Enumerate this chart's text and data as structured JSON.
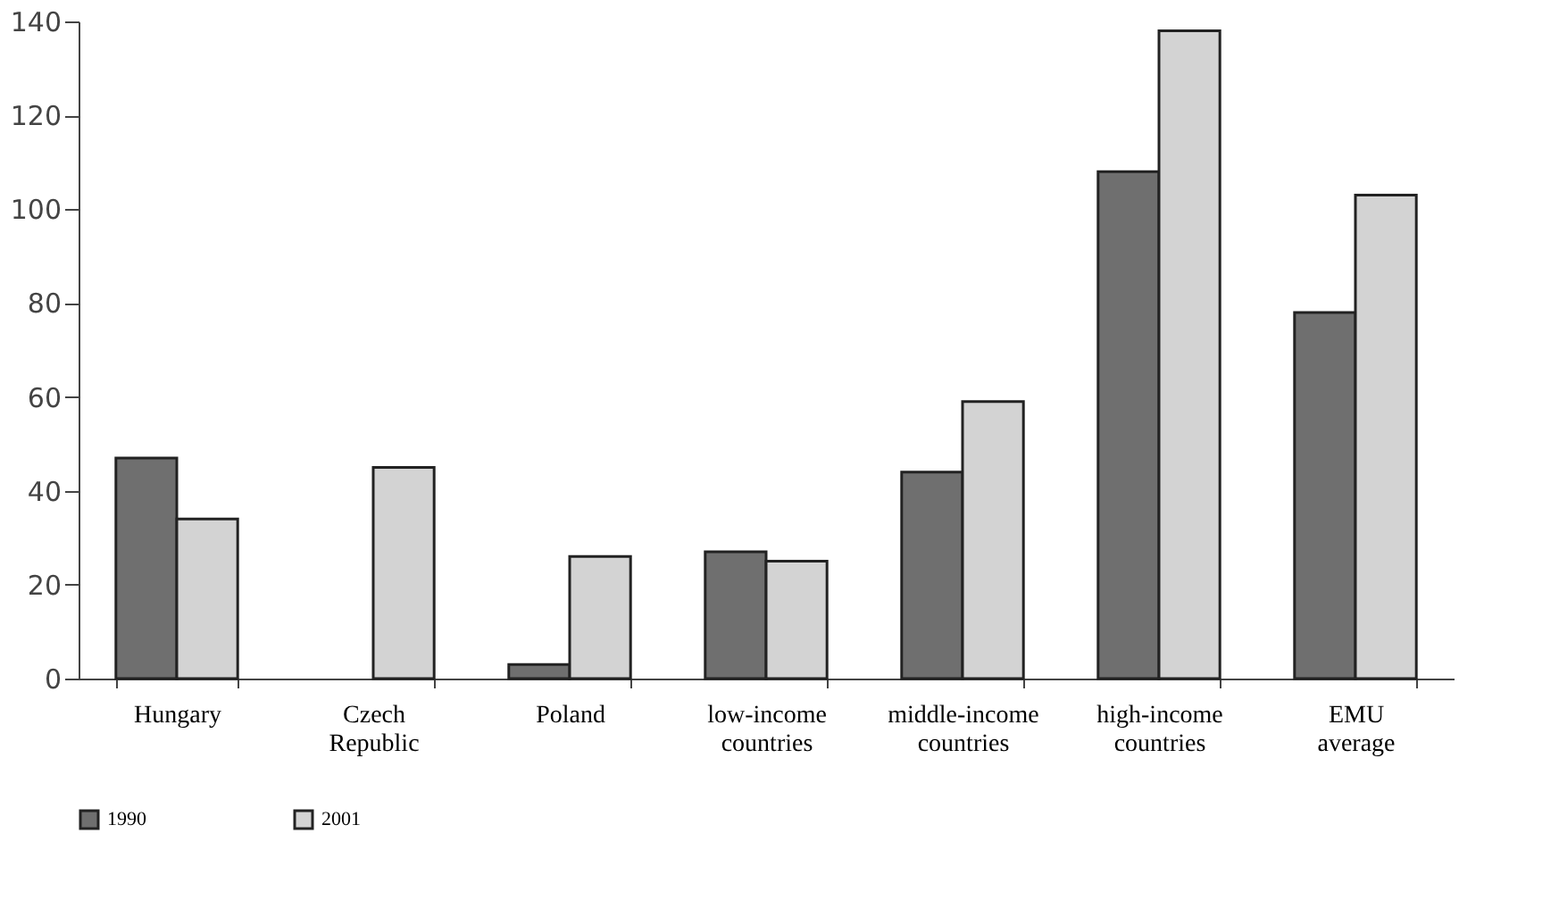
{
  "chart_data": {
    "type": "bar",
    "categories": [
      "Hungary",
      "Czech\nRepublic",
      "Poland",
      "low-income\ncountries",
      "middle-income\ncountries",
      "high-income\ncountries",
      "EMU\naverage"
    ],
    "series": [
      {
        "name": "1990",
        "color": "#6f6f6f",
        "values": [
          47,
          null,
          3,
          27,
          44,
          108,
          78
        ]
      },
      {
        "name": "2001",
        "color": "#d3d3d3",
        "values": [
          34,
          45,
          26,
          25,
          59,
          138,
          103
        ]
      }
    ],
    "ylim": [
      0,
      140
    ],
    "yticks": [
      0,
      20,
      40,
      60,
      80,
      100,
      120,
      140
    ],
    "grid": false,
    "legend": "bottom"
  }
}
